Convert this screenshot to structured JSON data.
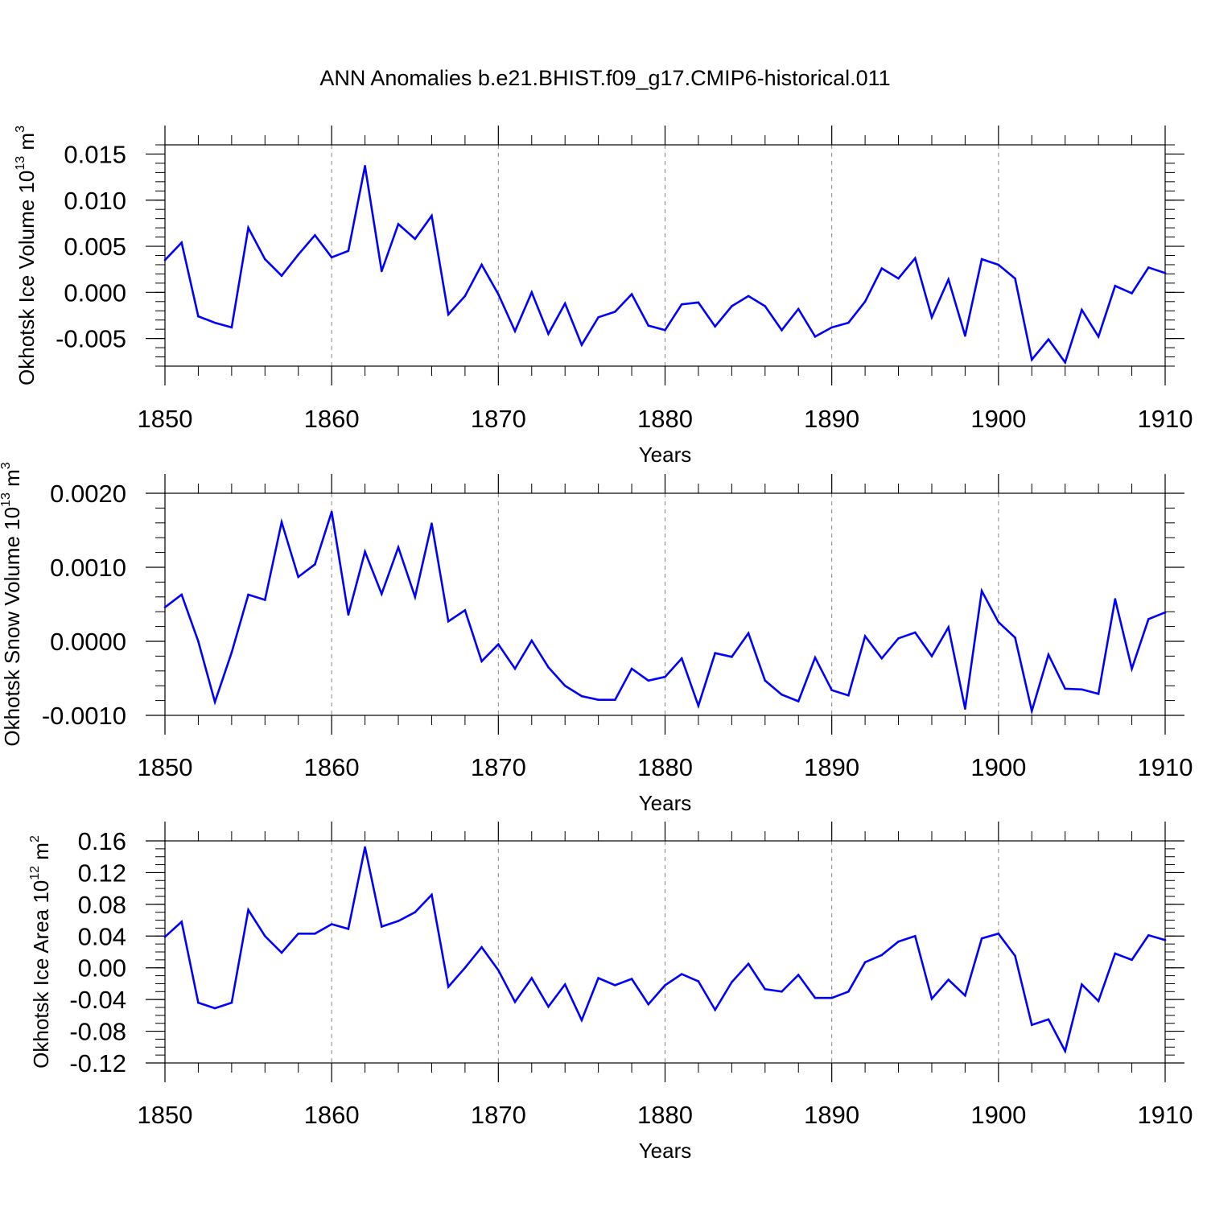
{
  "figure": {
    "title": "ANN Anomalies b.e21.BHIST.f09_g17.CMIP6-historical.011",
    "line_color": "#0000ff",
    "grid_color": "#888888",
    "axis_color": "#000000"
  },
  "chart_data": [
    {
      "type": "line",
      "ylabel": "Okhotsk Ice Volume 10",
      "ylabel_exp": "13",
      "ylabel_unit": " m",
      "ylabel_unit_exp": "3",
      "xlabel": "Years",
      "xlim": [
        1850,
        1910
      ],
      "ylim": [
        -0.008,
        0.016
      ],
      "x_ticks": [
        1850,
        1860,
        1870,
        1880,
        1890,
        1900,
        1910
      ],
      "x_tick_labels": [
        "1850",
        "1860",
        "1870",
        "1880",
        "1890",
        "1900",
        "1910"
      ],
      "y_ticks": [
        0.015,
        0.01,
        0.005,
        0.0,
        -0.005
      ],
      "y_tick_labels": [
        "0.015",
        "0.010",
        "0.005",
        "0.000",
        "-0.005"
      ],
      "y_minor_step": 0.001,
      "x_start": 1850,
      "series": [
        {
          "name": "Okhotsk Ice Volume",
          "values": [
            0.0035,
            0.0054,
            -0.0026,
            -0.0033,
            -0.0038,
            0.007,
            0.0036,
            0.0018,
            0.0041,
            0.0062,
            0.0038,
            0.0045,
            0.0137,
            0.0023,
            0.0074,
            0.0058,
            0.0083,
            -0.0024,
            -0.0004,
            0.003,
            -0.0002,
            -0.0042,
            0.0,
            -0.0045,
            -0.0012,
            -0.0057,
            -0.0027,
            -0.0021,
            -0.0002,
            -0.0036,
            -0.0041,
            -0.0013,
            -0.0011,
            -0.0037,
            -0.0015,
            -0.0004,
            -0.0015,
            -0.0041,
            -0.0018,
            -0.0048,
            -0.0038,
            -0.0033,
            -0.001,
            0.0026,
            0.0015,
            0.0037,
            -0.0027,
            0.0014,
            -0.0047,
            0.0036,
            0.003,
            0.0015,
            -0.0073,
            -0.0051,
            -0.0076,
            -0.0019,
            -0.0048,
            0.0007,
            -0.0001,
            0.0027,
            0.0021
          ]
        }
      ]
    },
    {
      "type": "line",
      "ylabel": "Okhotsk Snow Volume 10",
      "ylabel_exp": "13",
      "ylabel_unit": " m",
      "ylabel_unit_exp": "3",
      "xlabel": "Years",
      "xlim": [
        1850,
        1910
      ],
      "ylim": [
        -0.001,
        0.002
      ],
      "x_ticks": [
        1850,
        1860,
        1870,
        1880,
        1890,
        1900,
        1910
      ],
      "x_tick_labels": [
        "1850",
        "1860",
        "1870",
        "1880",
        "1890",
        "1900",
        "1910"
      ],
      "y_ticks": [
        0.002,
        0.001,
        0.0,
        -0.001
      ],
      "y_tick_labels": [
        "0.0020",
        "0.0010",
        "0.0000",
        "-0.0010"
      ],
      "y_minor_step": 0.0002,
      "x_start": 1850,
      "series": [
        {
          "name": "Okhotsk Snow Volume",
          "values": [
            0.00046,
            0.00063,
            0.0,
            -0.00082,
            -0.00015,
            0.00063,
            0.00056,
            0.00161,
            0.00087,
            0.00104,
            0.00175,
            0.00036,
            0.00121,
            0.00064,
            0.00127,
            0.0006,
            0.00159,
            0.00027,
            0.00042,
            -0.00027,
            -4e-05,
            -0.00037,
            1e-05,
            -0.00035,
            -0.0006,
            -0.00074,
            -0.00079,
            -0.00079,
            -0.00037,
            -0.00053,
            -0.00048,
            -0.00023,
            -0.00087,
            -0.00016,
            -0.00021,
            0.00011,
            -0.00053,
            -0.00072,
            -0.00081,
            -0.00022,
            -0.00066,
            -0.00073,
            7e-05,
            -0.00023,
            4e-05,
            0.00012,
            -0.0002,
            0.00019,
            -0.00091,
            0.00068,
            0.00026,
            5e-05,
            -0.00094,
            -0.00018,
            -0.00064,
            -0.00065,
            -0.00071,
            0.00057,
            -0.00037,
            0.0003,
            0.00039
          ]
        }
      ]
    },
    {
      "type": "line",
      "ylabel": "Okhotsk Ice Area 10",
      "ylabel_exp": "12",
      "ylabel_unit": " m",
      "ylabel_unit_exp": "2",
      "xlabel": "Years",
      "xlim": [
        1850,
        1910
      ],
      "ylim": [
        -0.12,
        0.16
      ],
      "x_ticks": [
        1850,
        1860,
        1870,
        1880,
        1890,
        1900,
        1910
      ],
      "x_tick_labels": [
        "1850",
        "1860",
        "1870",
        "1880",
        "1890",
        "1900",
        "1910"
      ],
      "y_ticks": [
        0.16,
        0.12,
        0.08,
        0.04,
        0.0,
        -0.04,
        -0.08,
        -0.12
      ],
      "y_tick_labels": [
        "0.16",
        "0.12",
        "0.08",
        "0.04",
        "0.00",
        "-0.04",
        "-0.08",
        "-0.12"
      ],
      "y_minor_step": 0.01,
      "x_start": 1850,
      "series": [
        {
          "name": "Okhotsk Ice Area",
          "values": [
            0.039,
            0.058,
            -0.044,
            -0.051,
            -0.044,
            0.073,
            0.04,
            0.019,
            0.043,
            0.043,
            0.055,
            0.049,
            0.152,
            0.052,
            0.059,
            0.07,
            0.092,
            -0.024,
            0.0,
            0.026,
            -0.003,
            -0.043,
            -0.013,
            -0.049,
            -0.021,
            -0.066,
            -0.013,
            -0.022,
            -0.014,
            -0.046,
            -0.022,
            -0.008,
            -0.017,
            -0.053,
            -0.018,
            0.005,
            -0.027,
            -0.03,
            -0.009,
            -0.038,
            -0.038,
            -0.03,
            0.007,
            0.016,
            0.033,
            0.04,
            -0.039,
            -0.015,
            -0.035,
            0.037,
            0.043,
            0.015,
            -0.072,
            -0.065,
            -0.105,
            -0.021,
            -0.042,
            0.018,
            0.01,
            0.041,
            0.035
          ]
        }
      ]
    }
  ]
}
